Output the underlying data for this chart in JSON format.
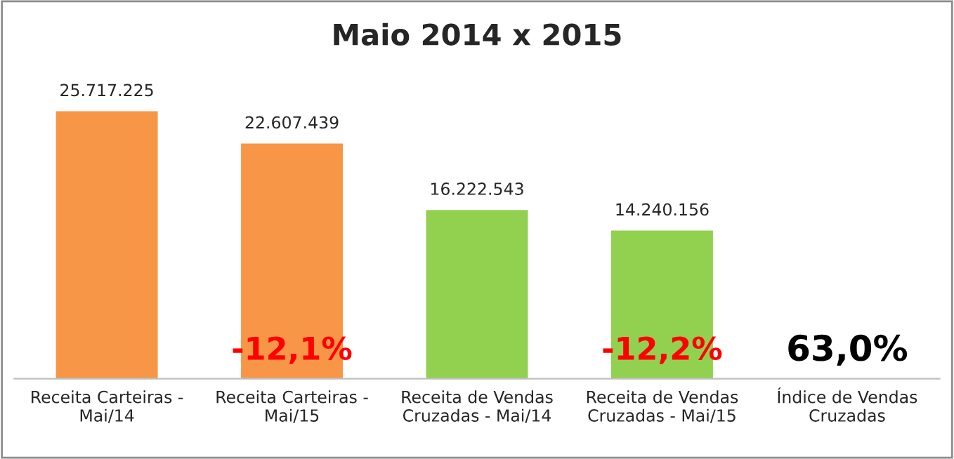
{
  "chart_data": {
    "type": "bar",
    "title": "Maio 2014 x 2015",
    "categories": [
      "Receita Carteiras -\nMai/14",
      "Receita Carteiras -\nMai/15",
      "Receita de Vendas\nCruzadas - Mai/14",
      "Receita de Vendas\nCruzadas - Mai/15",
      "Índice de Vendas\nCruzadas"
    ],
    "values": [
      25717225,
      22607439,
      16222543,
      14240156,
      null
    ],
    "colors": [
      "#f79646",
      "#f79646",
      "#92d050",
      "#92d050",
      "#ffffff"
    ],
    "value_labels": [
      "25.717.225",
      "22.607.439",
      "16.222.543",
      "14.240.156",
      null
    ],
    "tick_labels": "x",
    "grid": false,
    "annotations": [
      "-12,1%",
      "-12,2%",
      "63,0%"
    ]
  }
}
